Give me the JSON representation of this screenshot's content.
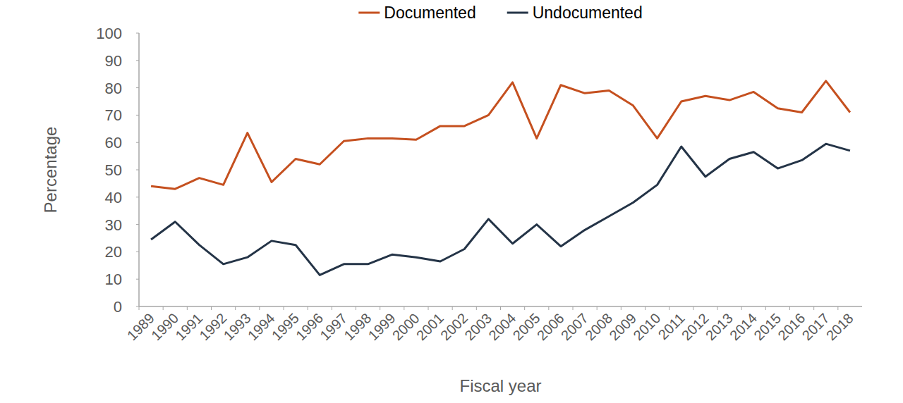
{
  "chart_data": {
    "type": "line",
    "x_label": "Fiscal year",
    "y_label": "Percentage",
    "categories": [
      "1989",
      "1990",
      "1991",
      "1992",
      "1993",
      "1994",
      "1995",
      "1996",
      "1997",
      "1998",
      "1999",
      "2000",
      "2001",
      "2002",
      "2003",
      "2004",
      "2005",
      "2006",
      "2007",
      "2008",
      "2009",
      "2010",
      "2011",
      "2012",
      "2013",
      "2014",
      "2015",
      "2016",
      "2017",
      "2018"
    ],
    "series": [
      {
        "name": "Documented",
        "color": "#c5501f",
        "values": [
          44,
          43,
          47,
          44.5,
          63.5,
          45.5,
          54,
          52,
          60.5,
          61.5,
          61.5,
          61,
          66,
          66,
          70,
          82,
          61.5,
          81,
          78,
          79,
          73.5,
          61.5,
          75,
          77,
          75.5,
          78.5,
          72.5,
          71,
          82.5,
          71
        ]
      },
      {
        "name": "Undocumented",
        "color": "#243447",
        "values": [
          24.5,
          31,
          22.5,
          15.5,
          18,
          24,
          22.5,
          11.5,
          15.5,
          15.5,
          19,
          18,
          16.5,
          21,
          32,
          23,
          30,
          22,
          28,
          33,
          38,
          44.5,
          58.5,
          47.5,
          54,
          56.5,
          50.5,
          53.5,
          59.5,
          57
        ]
      }
    ],
    "ylim": [
      0,
      100
    ],
    "yticks": [
      0,
      10,
      20,
      30,
      40,
      50,
      60,
      70,
      80,
      90,
      100
    ],
    "grid": false,
    "legend": "top"
  }
}
